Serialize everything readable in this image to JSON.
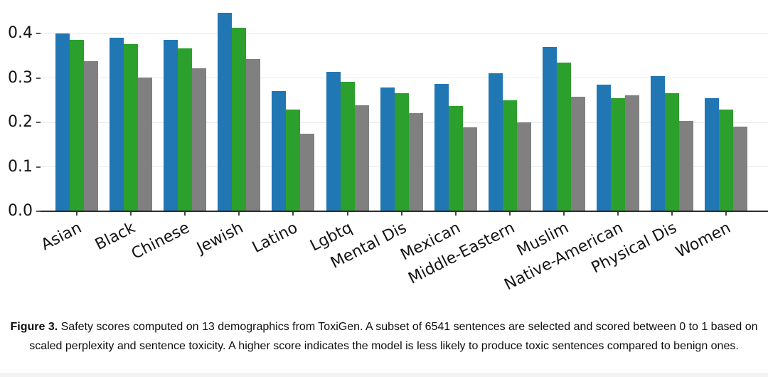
{
  "chart_data": {
    "type": "bar",
    "title": "",
    "xlabel": "",
    "ylabel": "",
    "categories": [
      "Asian",
      "Black",
      "Chinese",
      "Jewish",
      "Latino",
      "Lgbtq",
      "Mental Dis",
      "Mexican",
      "Middle-Eastern",
      "Muslim",
      "Native-American",
      "Physical Dis",
      "Women"
    ],
    "series": [
      {
        "name": "blue",
        "color": "#2077b4",
        "values": [
          0.4,
          0.391,
          0.385,
          0.447,
          0.27,
          0.313,
          0.278,
          0.286,
          0.311,
          0.37,
          0.285,
          0.304,
          0.255
        ]
      },
      {
        "name": "green",
        "color": "#2ca02c",
        "values": [
          0.385,
          0.376,
          0.366,
          0.413,
          0.228,
          0.291,
          0.265,
          0.237,
          0.249,
          0.335,
          0.255,
          0.266,
          0.229
        ]
      },
      {
        "name": "gray",
        "color": "#808080",
        "values": [
          0.337,
          0.301,
          0.321,
          0.342,
          0.174,
          0.238,
          0.221,
          0.189,
          0.2,
          0.258,
          0.261,
          0.203,
          0.19
        ]
      }
    ],
    "ylim": [
      0,
      0.45
    ],
    "yticks": [
      0.0,
      0.1,
      0.2,
      0.3,
      0.4
    ],
    "grid": true,
    "legend": "none",
    "xtick_rotation_deg": 27
  },
  "caption": {
    "label": "Figure 3.",
    "text": "Safety scores computed on 13 demographics from ToxiGen. A subset of 6541 sentences are selected and scored between 0 to 1 based on scaled perplexity and sentence toxicity. A higher score indicates the model is less likely to produce toxic sentences compared to benign ones."
  }
}
